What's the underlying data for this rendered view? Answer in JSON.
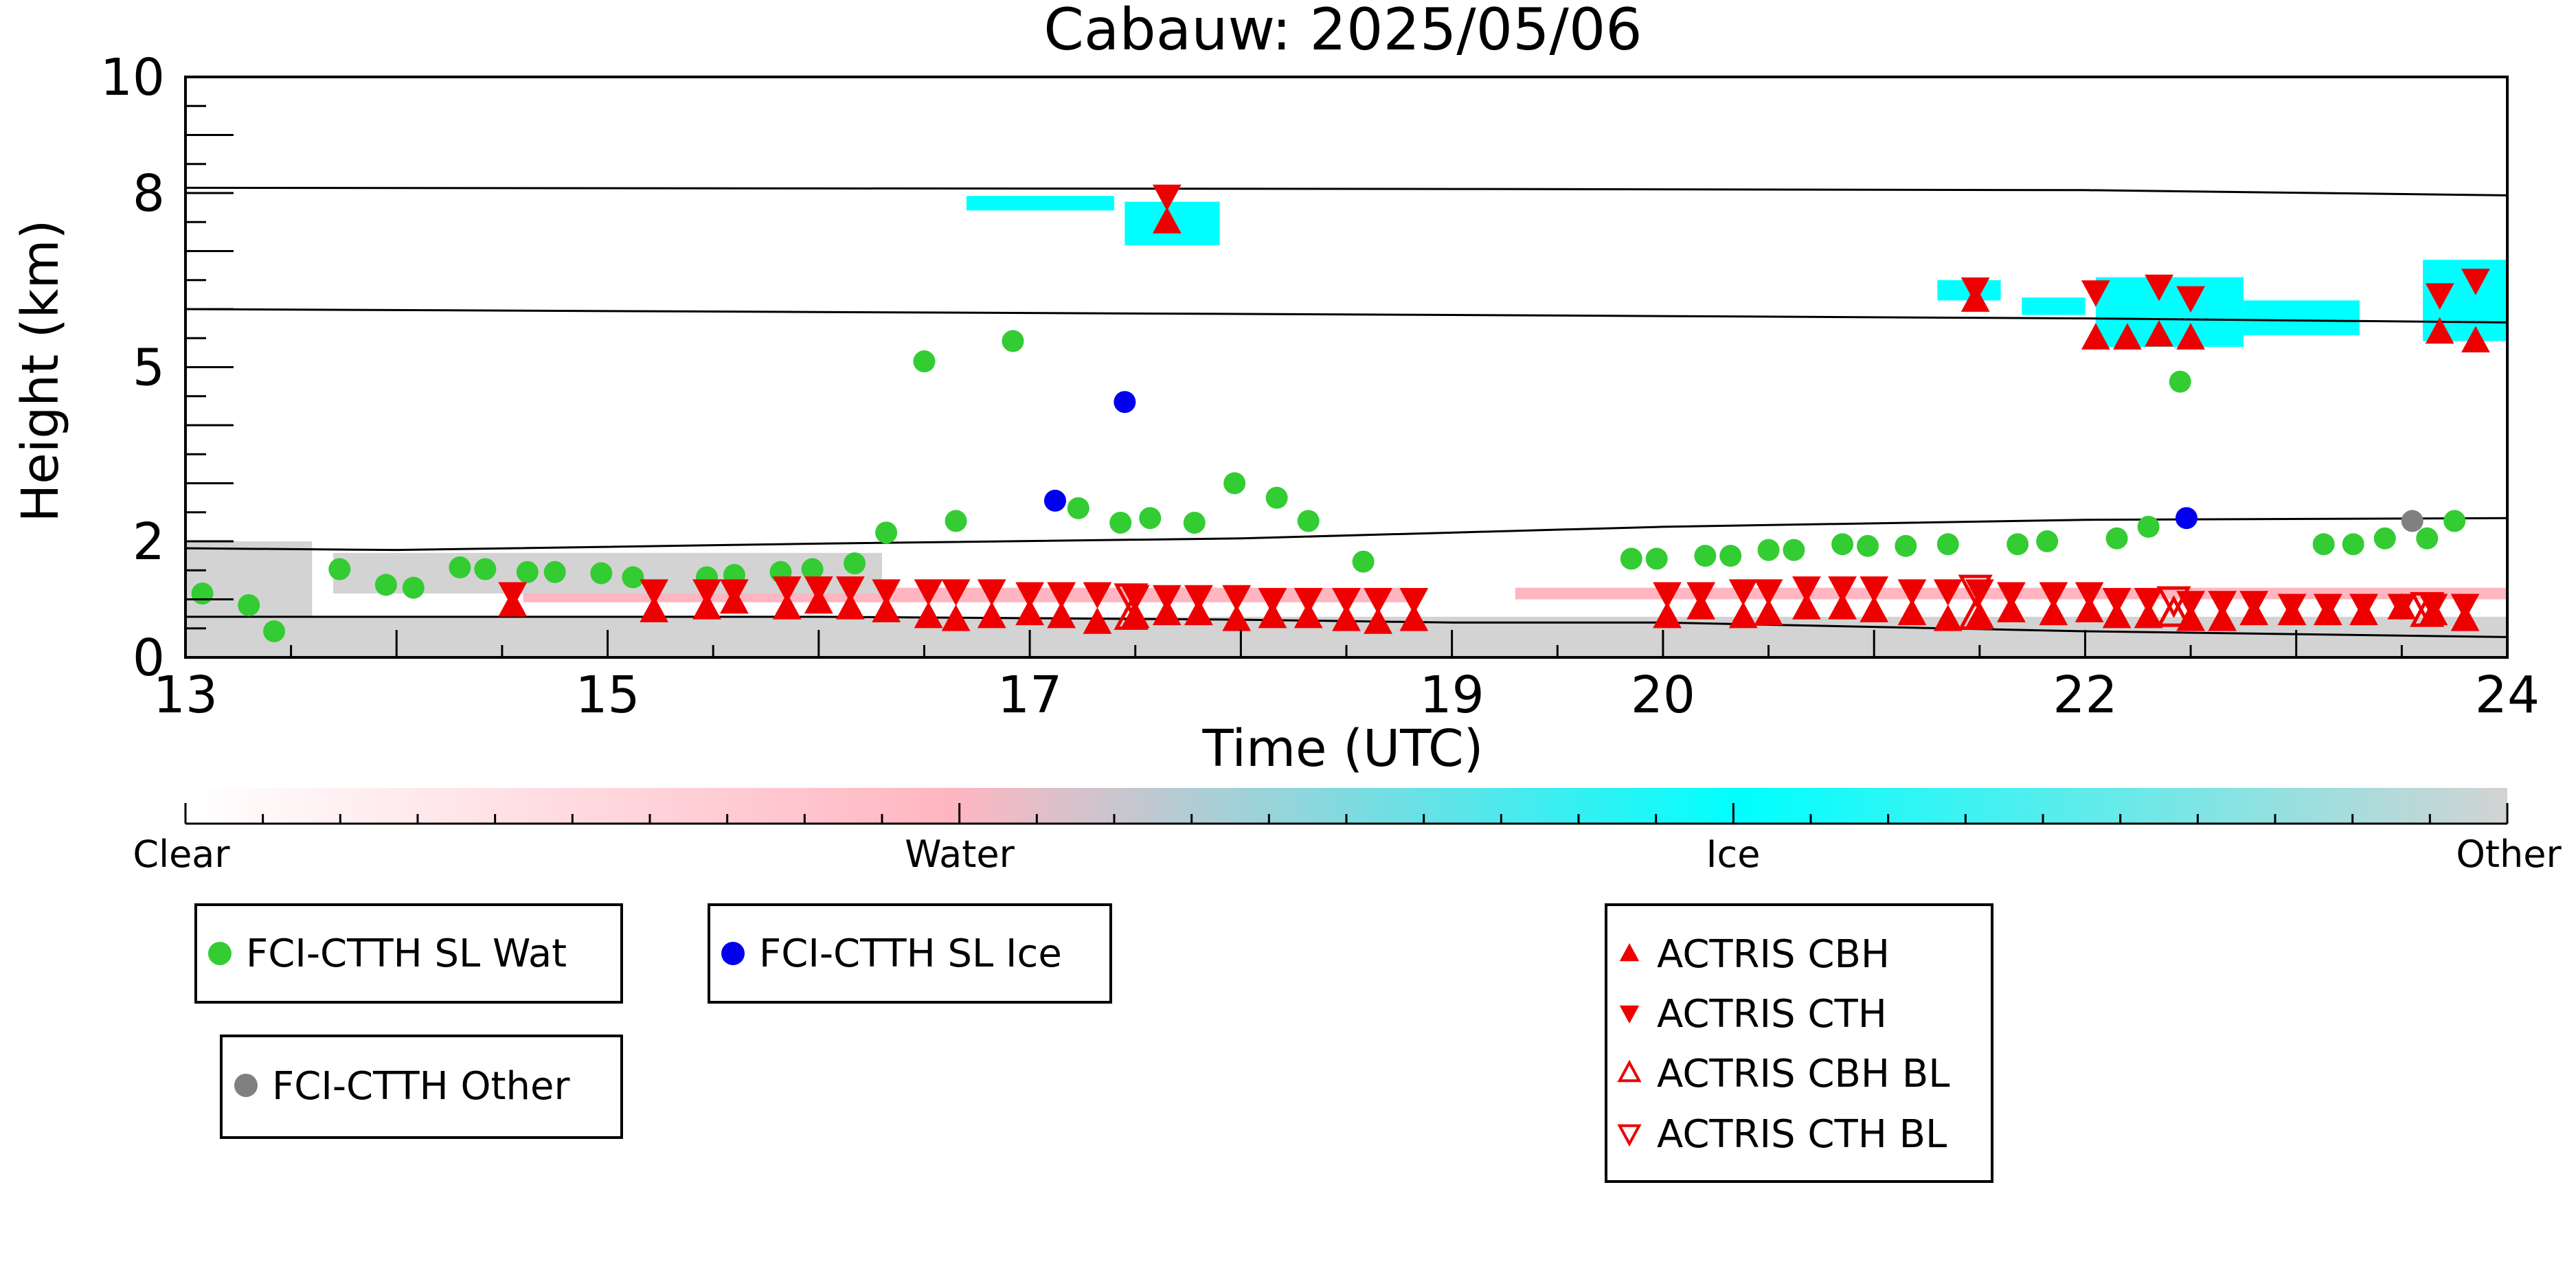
{
  "chart_data": {
    "type": "scatter",
    "title": "Cabauw: 2025/05/06",
    "xlabel": "Time (UTC)",
    "ylabel": "Height (km)",
    "xlim": [
      13,
      24
    ],
    "ylim": [
      0,
      10
    ],
    "x_ticks": [
      13,
      15,
      17,
      19,
      20,
      22,
      24
    ],
    "y_ticks": [
      0,
      2,
      5,
      8,
      10
    ],
    "grid": false,
    "colorbar": {
      "labels": [
        "Clear",
        "Water",
        "Ice",
        "Other"
      ],
      "colors": [
        "#ffffff",
        "#ffb6c1",
        "#00ffff",
        "#d3d3d3"
      ]
    },
    "lines": [
      {
        "x": [
          13,
          16,
          19,
          22,
          24
        ],
        "y": [
          8.09,
          8.08,
          8.07,
          8.05,
          7.96
        ]
      },
      {
        "x": [
          13,
          16,
          19,
          22,
          24
        ],
        "y": [
          6.0,
          5.95,
          5.9,
          5.84,
          5.77
        ]
      },
      {
        "x": [
          13,
          14,
          16,
          18,
          19,
          20,
          22,
          24
        ],
        "y": [
          1.88,
          1.85,
          1.96,
          2.05,
          2.15,
          2.25,
          2.37,
          2.4
        ]
      },
      {
        "x": [
          13,
          14,
          16,
          18,
          19,
          20,
          22,
          24
        ],
        "y": [
          0.7,
          0.7,
          0.7,
          0.65,
          0.6,
          0.6,
          0.45,
          0.35
        ]
      }
    ],
    "cloud_regions": [
      {
        "type": "Other",
        "x0": 13.0,
        "x1": 24.0,
        "y0": 0.0,
        "y1": 0.7
      },
      {
        "type": "Water",
        "x0": 14.6,
        "x1": 18.8,
        "y0": 0.95,
        "y1": 1.2
      },
      {
        "type": "Water",
        "x0": 19.3,
        "x1": 24.0,
        "y0": 1.0,
        "y1": 1.2
      },
      {
        "type": "Other",
        "x0": 13.0,
        "x1": 13.6,
        "y0": 0.2,
        "y1": 2.0
      },
      {
        "type": "Other",
        "x0": 13.7,
        "x1": 16.3,
        "y0": 1.1,
        "y1": 1.8
      },
      {
        "type": "Ice",
        "x0": 16.7,
        "x1": 17.4,
        "y0": 7.7,
        "y1": 7.95
      },
      {
        "type": "Ice",
        "x0": 17.45,
        "x1": 17.9,
        "y0": 7.1,
        "y1": 7.85
      },
      {
        "type": "Ice",
        "x0": 21.3,
        "x1": 21.6,
        "y0": 6.15,
        "y1": 6.5
      },
      {
        "type": "Ice",
        "x0": 21.7,
        "x1": 22.0,
        "y0": 5.9,
        "y1": 6.2
      },
      {
        "type": "Ice",
        "x0": 22.05,
        "x1": 22.75,
        "y0": 5.35,
        "y1": 6.55
      },
      {
        "type": "Ice",
        "x0": 22.75,
        "x1": 23.3,
        "y0": 5.55,
        "y1": 6.15
      },
      {
        "type": "Ice",
        "x0": 23.6,
        "x1": 24.0,
        "y0": 5.45,
        "y1": 6.85
      }
    ],
    "legend": [
      {
        "label": "FCI-CTTH SL Wat",
        "marker": "circle",
        "color": "#33cc33",
        "filled": true
      },
      {
        "label": "FCI-CTTH SL Ice",
        "marker": "circle",
        "color": "#0000ee",
        "filled": true
      },
      {
        "label": "FCI-CTTH Other",
        "marker": "circle",
        "color": "#808080",
        "filled": true
      },
      {
        "label": "ACTRIS CBH",
        "marker": "triangle-up",
        "color": "#ee0000",
        "filled": true
      },
      {
        "label": "ACTRIS CTH",
        "marker": "triangle-down",
        "color": "#ee0000",
        "filled": true
      },
      {
        "label": "ACTRIS CBH BL",
        "marker": "triangle-up",
        "color": "#ee0000",
        "filled": false
      },
      {
        "label": "ACTRIS CTH BL",
        "marker": "triangle-down",
        "color": "#ee0000",
        "filled": false
      }
    ],
    "series": [
      {
        "name": "FCI-CTTH SL Wat",
        "marker": "circle",
        "color": "#33cc33",
        "filled": true,
        "x": [
          13.08,
          13.3,
          13.42,
          13.73,
          13.95,
          14.08,
          14.3,
          14.42,
          14.62,
          14.75,
          14.97,
          15.12,
          15.47,
          15.6,
          15.82,
          15.97,
          16.17,
          16.32,
          16.5,
          16.65,
          16.92,
          17.23,
          17.43,
          17.57,
          17.78,
          17.97,
          18.17,
          18.32,
          18.58,
          19.85,
          19.97,
          20.2,
          20.32,
          20.5,
          20.62,
          20.85,
          20.97,
          21.15,
          21.35,
          21.68,
          21.82,
          22.15,
          22.3,
          22.45,
          23.13,
          23.27,
          23.42,
          23.62,
          23.75
        ],
        "y": [
          1.1,
          0.9,
          0.45,
          1.52,
          1.25,
          1.2,
          1.55,
          1.52,
          1.47,
          1.47,
          1.45,
          1.38,
          1.38,
          1.42,
          1.47,
          1.52,
          1.62,
          2.15,
          5.1,
          2.35,
          5.45,
          2.57,
          2.32,
          2.4,
          2.32,
          3.0,
          2.75,
          2.35,
          1.65,
          1.7,
          1.7,
          1.75,
          1.75,
          1.85,
          1.85,
          1.95,
          1.92,
          1.92,
          1.95,
          1.95,
          2.0,
          2.05,
          2.25,
          4.75,
          1.95,
          1.95,
          2.05,
          2.05,
          2.35
        ]
      },
      {
        "name": "FCI-CTTH SL Ice",
        "marker": "circle",
        "color": "#0000ee",
        "filled": true,
        "x": [
          17.12,
          17.45,
          22.48
        ],
        "y": [
          2.7,
          4.4,
          2.4
        ]
      },
      {
        "name": "FCI-CTTH Other",
        "marker": "circle",
        "color": "#808080",
        "filled": true,
        "x": [
          23.55
        ],
        "y": [
          2.35
        ]
      },
      {
        "name": "ACTRIS CBH",
        "marker": "triangle-up",
        "color": "#ee0000",
        "filled": true,
        "x": [
          14.55,
          15.22,
          15.47,
          15.6,
          15.85,
          16.0,
          16.15,
          16.32,
          16.52,
          16.65,
          16.82,
          17.0,
          17.15,
          17.32,
          17.5,
          17.65,
          17.8,
          17.98,
          18.15,
          18.32,
          18.5,
          18.65,
          18.82,
          20.02,
          20.18,
          20.38,
          20.5,
          20.68,
          20.85,
          21.0,
          21.18,
          21.35,
          21.5,
          21.65,
          21.85,
          22.02,
          22.15,
          22.3,
          22.5,
          22.65,
          22.8,
          22.98,
          23.15,
          23.32,
          23.5,
          23.65,
          23.8
        ],
        "y": [
          0.9,
          0.8,
          0.85,
          0.95,
          0.85,
          0.95,
          0.85,
          0.8,
          0.7,
          0.65,
          0.7,
          0.75,
          0.7,
          0.6,
          0.7,
          0.75,
          0.75,
          0.65,
          0.7,
          0.7,
          0.65,
          0.6,
          0.65,
          0.7,
          0.85,
          0.7,
          0.75,
          0.85,
          0.85,
          0.8,
          0.75,
          0.65,
          0.7,
          0.8,
          0.75,
          0.8,
          0.7,
          0.7,
          0.65,
          0.65,
          0.75,
          0.75,
          0.75,
          0.75,
          0.85,
          0.75,
          0.65
        ]
      },
      {
        "name": "ACTRIS CTH",
        "marker": "triangle-down",
        "color": "#ee0000",
        "filled": true,
        "x": [
          14.55,
          15.22,
          15.47,
          15.6,
          15.85,
          16.0,
          16.15,
          16.32,
          16.52,
          16.65,
          16.82,
          17.0,
          17.15,
          17.32,
          17.5,
          17.65,
          17.8,
          17.98,
          18.15,
          18.32,
          18.5,
          18.65,
          18.82,
          20.02,
          20.18,
          20.38,
          20.5,
          20.68,
          20.85,
          21.0,
          21.18,
          21.35,
          21.5,
          21.65,
          21.85,
          22.02,
          22.15,
          22.3,
          22.5,
          22.65,
          22.8,
          22.98,
          23.15,
          23.32,
          23.5,
          23.65,
          23.8
        ],
        "y": [
          1.1,
          1.15,
          1.15,
          1.15,
          1.2,
          1.2,
          1.2,
          1.15,
          1.15,
          1.15,
          1.15,
          1.1,
          1.1,
          1.1,
          1.05,
          1.05,
          1.05,
          1.05,
          1.0,
          1.0,
          1.0,
          1.0,
          1.0,
          1.1,
          1.1,
          1.15,
          1.15,
          1.2,
          1.2,
          1.2,
          1.15,
          1.15,
          1.15,
          1.1,
          1.1,
          1.1,
          1.0,
          1.0,
          0.95,
          0.95,
          0.95,
          0.9,
          0.9,
          0.9,
          0.9,
          0.9,
          0.9
        ]
      },
      {
        "name": "ACTRIS CBH BL",
        "marker": "triangle-up",
        "color": "#ee0000",
        "filled": false,
        "x": [
          17.48,
          21.48,
          22.42,
          23.62
        ],
        "y": [
          0.7,
          0.7,
          0.75,
          0.75
        ]
      },
      {
        "name": "ACTRIS CTH BL",
        "marker": "triangle-down",
        "color": "#ee0000",
        "filled": false,
        "x": [
          17.48,
          21.48,
          22.42,
          23.62
        ],
        "y": [
          1.05,
          1.2,
          1.0,
          0.9
        ]
      }
    ],
    "upper_markers": [
      {
        "series": "ACTRIS CBH",
        "x": [
          17.65,
          21.48,
          22.05,
          22.2,
          22.35,
          22.5,
          23.68,
          23.85
        ],
        "y": [
          7.5,
          6.15,
          5.5,
          5.5,
          5.55,
          5.5,
          5.6,
          5.45
        ]
      },
      {
        "series": "ACTRIS CTH",
        "x": [
          17.65,
          21.48,
          22.05,
          22.35,
          22.5,
          23.68,
          23.85
        ],
        "y": [
          7.95,
          6.35,
          6.3,
          6.4,
          6.2,
          6.25,
          6.5
        ]
      }
    ]
  }
}
